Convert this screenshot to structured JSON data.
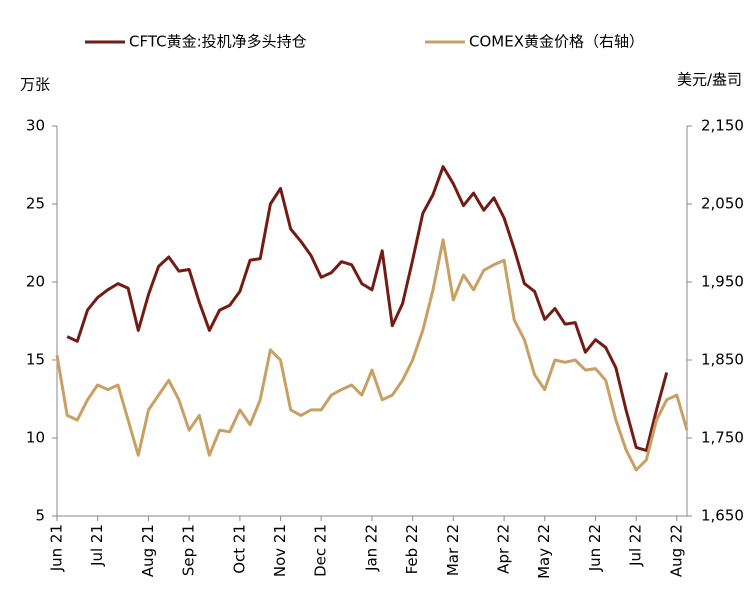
{
  "chart_data": {
    "type": "line",
    "y_unit": "万张",
    "y2_unit": "美元/盎司",
    "categories": [
      "Jun 21",
      null,
      null,
      null,
      "Jul 21",
      null,
      null,
      null,
      null,
      "Aug 21",
      null,
      null,
      null,
      "Sep 21",
      null,
      null,
      null,
      null,
      "Oct 21",
      null,
      null,
      null,
      "Nov 21",
      null,
      null,
      null,
      "Dec 21",
      null,
      null,
      null,
      null,
      "Jan 22",
      null,
      null,
      null,
      "Feb 22",
      null,
      null,
      null,
      "Mar 22",
      null,
      null,
      null,
      null,
      "Apr 22",
      null,
      null,
      null,
      "May 22",
      null,
      null,
      null,
      null,
      "Jun 22",
      null,
      null,
      null,
      "Jul 22",
      null,
      null,
      null,
      "Aug 22",
      null
    ],
    "series": [
      {
        "name": "CFTC黄金:投机净多头持仓",
        "color": "#731c15",
        "axis": "y",
        "values": [
          null,
          16.5,
          16.2,
          18.2,
          19.0,
          19.5,
          19.9,
          19.6,
          16.9,
          19.2,
          21.0,
          21.6,
          20.7,
          20.8,
          18.7,
          16.9,
          18.2,
          18.5,
          19.4,
          21.4,
          21.5,
          25.0,
          26.0,
          23.4,
          22.6,
          21.7,
          20.3,
          20.6,
          21.3,
          21.1,
          19.9,
          19.5,
          22.0,
          17.2,
          18.6,
          21.4,
          24.4,
          25.6,
          27.4,
          26.3,
          24.9,
          25.7,
          24.6,
          25.4,
          24.1,
          22.1,
          19.9,
          19.4,
          17.6,
          18.3,
          17.3,
          17.4,
          15.5,
          16.3,
          15.8,
          14.5,
          11.8,
          9.4,
          9.2,
          11.8,
          14.2,
          null,
          null
        ]
      },
      {
        "name": "COMEX黄金价格（右轴）",
        "color": "#c8a064",
        "axis": "y2",
        "values": [
          1856,
          1779,
          1773,
          1799,
          1818,
          1812,
          1818,
          1773,
          1728,
          1786,
          1805,
          1824,
          1799,
          1760,
          1779,
          1728,
          1760,
          1758,
          1786,
          1767,
          1799,
          1863,
          1850,
          1786,
          1779,
          1786,
          1786,
          1805,
          1812,
          1818,
          1805,
          1837,
          1799,
          1805,
          1824,
          1850,
          1888,
          1940,
          2004,
          1927,
          1959,
          1940,
          1965,
          1972,
          1978,
          1901,
          1876,
          1831,
          1812,
          1850,
          1847,
          1850,
          1837,
          1839,
          1824,
          1773,
          1735,
          1709,
          1722,
          1773,
          1799,
          1805,
          1760
        ]
      }
    ],
    "ylim": [
      5,
      30
    ],
    "yticks": [
      5,
      10,
      15,
      20,
      25,
      30
    ],
    "y2lim": [
      1650,
      2150
    ],
    "y2ticks": [
      {
        "value": 1650,
        "label": "1,650"
      },
      {
        "value": 1750,
        "label": "1,750"
      },
      {
        "value": 1850,
        "label": "1,850"
      },
      {
        "value": 1950,
        "label": "1,950"
      },
      {
        "value": 2050,
        "label": "2,050"
      },
      {
        "value": 2150,
        "label": "2,150"
      }
    ],
    "grid": false,
    "legend": "top"
  }
}
